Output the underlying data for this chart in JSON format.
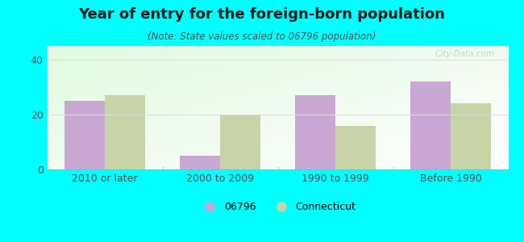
{
  "title": "Year of entry for the foreign-born population",
  "subtitle": "(Note: State values scaled to 06796 population)",
  "categories": [
    "2010 or later",
    "2000 to 2009",
    "1990 to 1999",
    "Before 1990"
  ],
  "values_06796": [
    25,
    5,
    27,
    32
  ],
  "values_connecticut": [
    27,
    20,
    16,
    24
  ],
  "color_06796": "#c9a8d4",
  "color_connecticut": "#c8d4a8",
  "background_outer": "#00ffff",
  "ylim": [
    0,
    45
  ],
  "yticks": [
    0,
    20,
    40
  ],
  "bar_width": 0.35,
  "legend_label_06796": "06796",
  "legend_label_ct": "Connecticut",
  "watermark": "City-Data.com",
  "title_fontsize": 13,
  "subtitle_fontsize": 8.5,
  "tick_fontsize": 9,
  "legend_fontsize": 9
}
